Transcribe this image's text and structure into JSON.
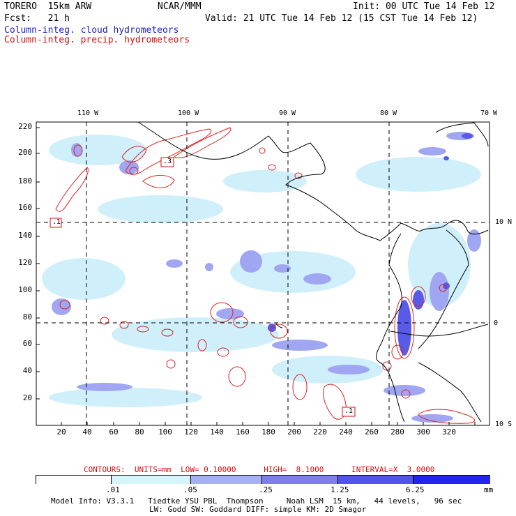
{
  "header": {
    "model": "TORERO  15km ARW",
    "org": "NCAR/MMM",
    "init": "Init: 00 UTC Tue 14 Feb 12",
    "fcst": "Fcst:   21 h",
    "valid": "Valid: 21 UTC Tue 14 Feb 12 (15 CST Tue 14 Feb 12)",
    "field1": "Column-integ. cloud hydrometeors",
    "field2": "Column-integ. precip. hydrometeors"
  },
  "map": {
    "lon_labels": [
      "110 W",
      "100 W",
      "90 W",
      "80 W",
      "70 W"
    ],
    "lat_labels": [
      "10 N",
      "0",
      "10 S"
    ],
    "y_ticks": [
      "220",
      "200",
      "180",
      "160",
      "140",
      "120",
      "100",
      "80",
      "60",
      "40",
      "20"
    ],
    "x_ticks": [
      "20",
      "40",
      "60",
      "80",
      "100",
      "120",
      "140",
      "160",
      "180",
      "200",
      "220",
      "240",
      "260",
      "280",
      "300",
      "320"
    ],
    "contour_labels": [
      ".1",
      ".3",
      ".1"
    ],
    "colors": {
      "land": "#000000",
      "precip_contour": "#e02020",
      "cloud_light": "#cfeffa",
      "cloud_mid": "#9aa6f0",
      "cloud_dark": "#5a5ae8"
    }
  },
  "contour_info": "CONTOURS:  UNITS=mm  LOW= 0.10000      HIGH=  8.1000      INTERVAL=X  3.0000",
  "colorbar": {
    "ticks": [
      ".01",
      ".05",
      ".25",
      "1.25",
      "6.25"
    ],
    "units": "mm",
    "colors": [
      "#ffffff",
      "#d6f4fb",
      "#a6d8f2",
      "#a0a6f2",
      "#6a6aee",
      "#4a4af0",
      "#2020f0"
    ]
  },
  "footer": {
    "line1": "Model Info: V3.3.1   Tiedtke YSU PBL  Thompson     Noah LSM  15 km,   44 levels,   96 sec",
    "line2": "LW: Godd SW: Goddard DIFF: simple KM: 2D Smagor"
  }
}
